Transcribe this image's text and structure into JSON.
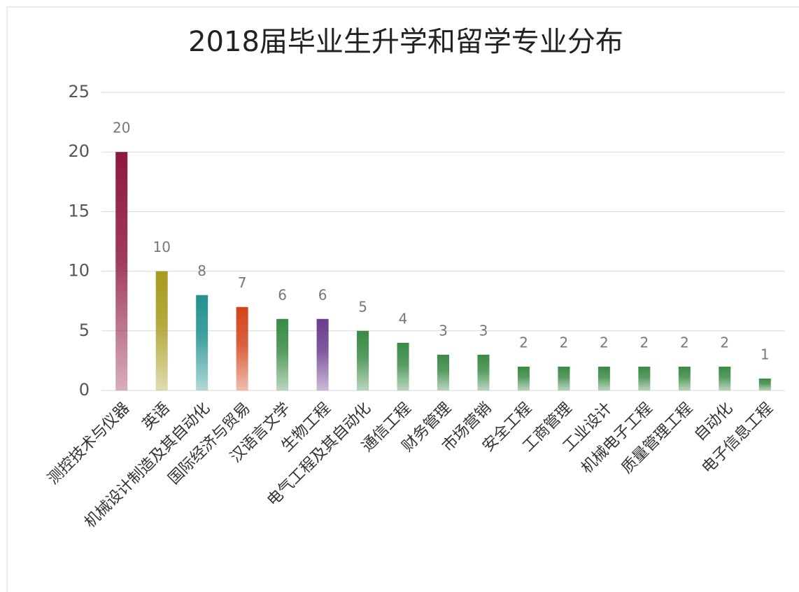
{
  "chart_data": {
    "type": "bar",
    "title": "2018届毕业生升学和留学专业分布",
    "categories": [
      "测控技术与仪器",
      "英语",
      "机械设计制造及其自动化",
      "国际经济与贸易",
      "汉语言文学",
      "生物工程",
      "电气工程及其自动化",
      "通信工程",
      "财务管理",
      "市场营销",
      "安全工程",
      "工商管理",
      "工业设计",
      "机械电子工程",
      "质量管理工程",
      "自动化",
      "电子信息工程"
    ],
    "values": [
      20,
      10,
      8,
      7,
      6,
      6,
      5,
      4,
      3,
      3,
      2,
      2,
      2,
      2,
      2,
      2,
      1
    ],
    "colors": [
      "#8e1840",
      "#a89a1c",
      "#23918f",
      "#d4431a",
      "#3a8a45",
      "#6b3c8e",
      "#3a8a45",
      "#3a8a45",
      "#3a8a45",
      "#3a8a45",
      "#3a8a45",
      "#3a8a45",
      "#3a8a45",
      "#3a8a45",
      "#3a8a45",
      "#3a8a45",
      "#3a8a45"
    ],
    "ylim": [
      0,
      25
    ],
    "yticks": [
      0,
      5,
      10,
      15,
      20,
      25
    ],
    "grid": true
  }
}
